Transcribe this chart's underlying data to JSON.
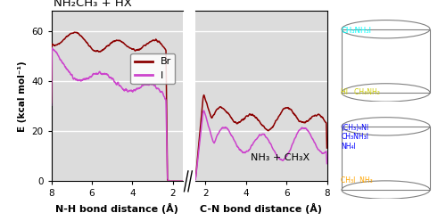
{
  "title": "NH₂CH₃ + HX",
  "nh3_label": "NH₃ + CH₃X",
  "ylabel": "E (kcal mol⁻¹)",
  "xlabel_left": "N-H bond distance (Å)",
  "xlabel_right": "C-N bond distance (Å)",
  "br_color": "#8B0000",
  "i_color": "#CC44CC",
  "background_color": "#DCDCDC",
  "ylim": [
    0,
    68
  ],
  "yticks": [
    0,
    20,
    40,
    60
  ],
  "figsize": [
    5.0,
    2.48
  ],
  "dpi": 100,
  "legend_br": "Br",
  "legend_i": "I",
  "cyan_text": "CH₃NH₃I",
  "cyan_text2": "HI   CH₃NH₂",
  "blue_text": "(CH₃)₄NI\nCH₃NH₃I\nNH₄I",
  "orange_text": "CH₃I  NH₃"
}
